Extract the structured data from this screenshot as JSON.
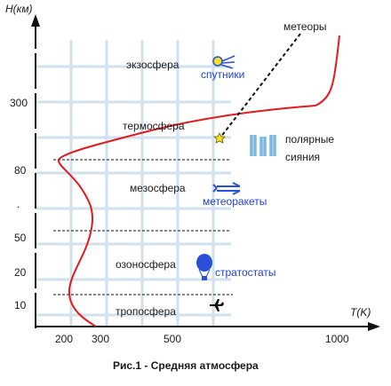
{
  "axes": {
    "y_title": "H(км)",
    "x_title": "T(K)",
    "y_ticks": [
      "10",
      "20",
      "50",
      "80",
      "300"
    ],
    "x_ticks": [
      "200",
      "300",
      "500",
      "1000"
    ]
  },
  "layers": {
    "exosphere": "экзосфера",
    "thermosphere": "термосфера",
    "mesosphere": "мезосфера",
    "ozonosphere": "озоносфера",
    "troposphere": "тропосфера"
  },
  "objects": {
    "meteors": "метеоры",
    "satellites": "спутники",
    "aurora_line1": "полярные",
    "aurora_line2": "сияния",
    "meteo_rockets": "метеоракеты",
    "stratostats": "стратостаты"
  },
  "caption": "Рис.1 - Средняя атмосфера",
  "colors": {
    "curve": "#e3191b",
    "grid": "#cfe0ee",
    "blue_text": "#1f3fd6",
    "aurora": "#8fc4e8",
    "icon_blue": "#2a4fd8",
    "sun_yellow": "#f5e11c"
  },
  "icons": [
    "satellite-icon",
    "meteor-star-icon",
    "aurora-icon",
    "rocket-icon",
    "balloon-icon",
    "airplane-icon"
  ]
}
